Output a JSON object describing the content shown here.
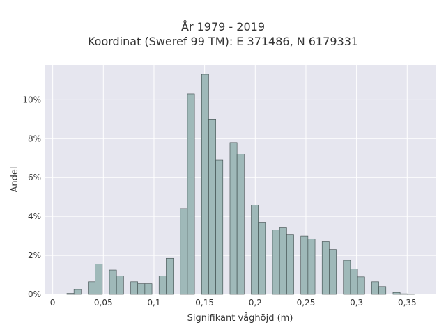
{
  "chart_data": {
    "type": "bar",
    "title": [
      "År 1979 - 2019",
      "Koordinat (Sweref 99 TM): E 371486, N 6179331"
    ],
    "xlabel": "Signifikant våghöjd (m)",
    "ylabel": "Andel",
    "xlim": [
      -0.008,
      0.378
    ],
    "ylim": [
      0,
      11.8
    ],
    "bin_width": 0.007,
    "x_ticks": [
      0,
      0.05,
      0.1,
      0.15,
      0.2,
      0.25,
      0.3,
      0.35
    ],
    "x_tick_labels": [
      "0",
      "0,05",
      "0,1",
      "0,15",
      "0,2",
      "0,25",
      "0,3",
      "0,35"
    ],
    "y_ticks": [
      0,
      2,
      4,
      6,
      8,
      10
    ],
    "y_tick_labels": [
      "0%",
      "2%",
      "4%",
      "6%",
      "8%",
      "10%"
    ],
    "grid": true,
    "colors": {
      "bar_fill": "#9fb9b9",
      "bar_stroke": "#3a4848",
      "plot_bg": "#e6e6ef",
      "grid": "#ffffff"
    },
    "bins": [
      {
        "x": 0.0175,
        "value": 0.05
      },
      {
        "x": 0.0245,
        "value": 0.25
      },
      {
        "x": 0.0385,
        "value": 0.65
      },
      {
        "x": 0.0455,
        "value": 1.55
      },
      {
        "x": 0.0595,
        "value": 1.25
      },
      {
        "x": 0.0665,
        "value": 0.95
      },
      {
        "x": 0.0805,
        "value": 0.65
      },
      {
        "x": 0.0875,
        "value": 0.55
      },
      {
        "x": 0.0945,
        "value": 0.55
      },
      {
        "x": 0.1085,
        "value": 0.95
      },
      {
        "x": 0.1155,
        "value": 1.85
      },
      {
        "x": 0.1295,
        "value": 4.4
      },
      {
        "x": 0.1365,
        "value": 10.3
      },
      {
        "x": 0.1505,
        "value": 11.3
      },
      {
        "x": 0.1575,
        "value": 9.0
      },
      {
        "x": 0.1645,
        "value": 6.9
      },
      {
        "x": 0.1785,
        "value": 7.8
      },
      {
        "x": 0.1855,
        "value": 7.2
      },
      {
        "x": 0.1995,
        "value": 4.6
      },
      {
        "x": 0.2065,
        "value": 3.7
      },
      {
        "x": 0.2205,
        "value": 3.3
      },
      {
        "x": 0.2275,
        "value": 3.45
      },
      {
        "x": 0.2345,
        "value": 3.05
      },
      {
        "x": 0.2485,
        "value": 3.0
      },
      {
        "x": 0.2555,
        "value": 2.85
      },
      {
        "x": 0.2695,
        "value": 2.7
      },
      {
        "x": 0.2765,
        "value": 2.3
      },
      {
        "x": 0.2905,
        "value": 1.75
      },
      {
        "x": 0.2975,
        "value": 1.3
      },
      {
        "x": 0.3045,
        "value": 0.9
      },
      {
        "x": 0.3185,
        "value": 0.65
      },
      {
        "x": 0.3255,
        "value": 0.4
      },
      {
        "x": 0.3395,
        "value": 0.1
      },
      {
        "x": 0.3465,
        "value": 0.03
      },
      {
        "x": 0.3535,
        "value": 0.02
      }
    ]
  }
}
